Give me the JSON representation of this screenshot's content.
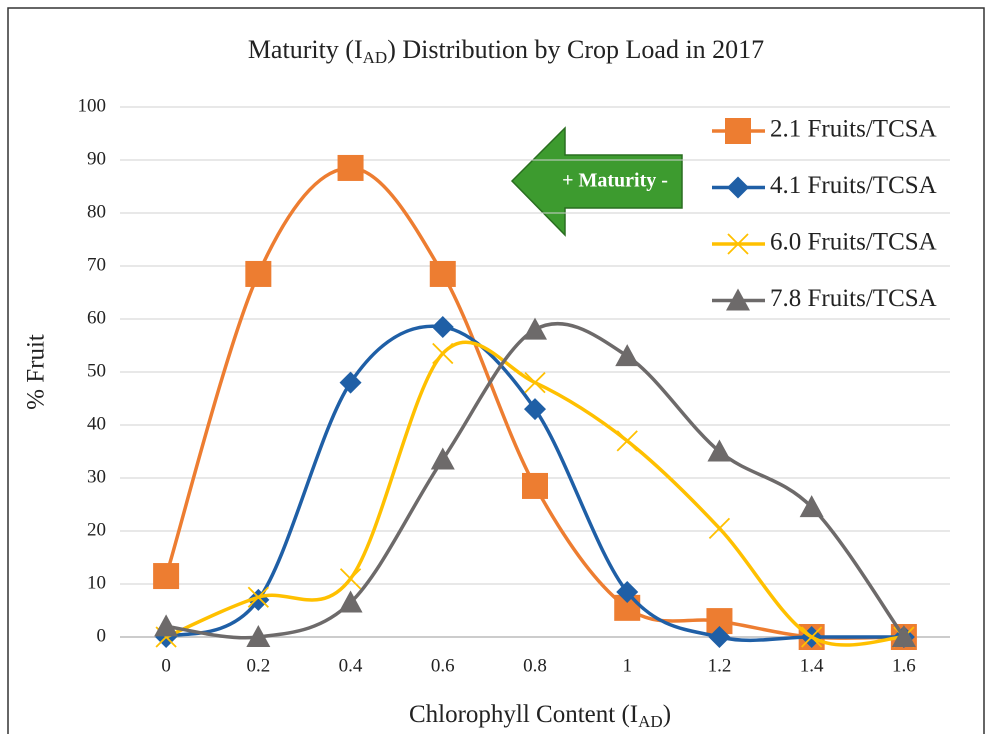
{
  "chart_data": {
    "type": "line",
    "title": [
      "Maturity (I",
      "AD",
      ") Distribution by Crop Load in 2017"
    ],
    "x_label": [
      "Chlorophyll Content (I",
      "AD",
      ")"
    ],
    "y_label": "% Fruit",
    "annotation": "+ Maturity -",
    "x": [
      0,
      0.2,
      0.4,
      0.6,
      0.8,
      1,
      1.2,
      1.4,
      1.6
    ],
    "xlim": [
      -0.1,
      1.7
    ],
    "xticks": [
      0,
      0.2,
      0.4,
      0.6,
      0.8,
      1,
      1.2,
      1.4,
      1.6
    ],
    "ylim": [
      0,
      100
    ],
    "yticks": [
      0,
      10,
      20,
      30,
      40,
      50,
      60,
      70,
      80,
      90,
      100
    ],
    "grid": true,
    "smooth": true,
    "legend": "top-right",
    "series": [
      {
        "name": "2.1 Fruits/TCSA",
        "color": "#ed7d31",
        "marker": "square",
        "values": [
          11.5,
          68.5,
          88.5,
          68.5,
          28.5,
          5.5,
          3,
          0,
          0
        ]
      },
      {
        "name": "4.1 Fruits/TCSA",
        "color": "#1f5fa6",
        "marker": "diamond",
        "values": [
          0,
          7,
          48,
          58.5,
          43,
          8.5,
          0,
          0,
          0
        ]
      },
      {
        "name": "6.0 Fruits/TCSA",
        "color": "#ffc000",
        "marker": "x",
        "values": [
          0,
          7.5,
          11,
          53.5,
          48,
          37,
          20.5,
          0,
          0
        ]
      },
      {
        "name": "7.8 Fruits/TCSA",
        "color": "#6d6a6a",
        "marker": "triangle",
        "values": [
          2,
          0,
          6.5,
          33.5,
          58,
          53,
          35,
          24.5,
          0
        ]
      }
    ]
  }
}
